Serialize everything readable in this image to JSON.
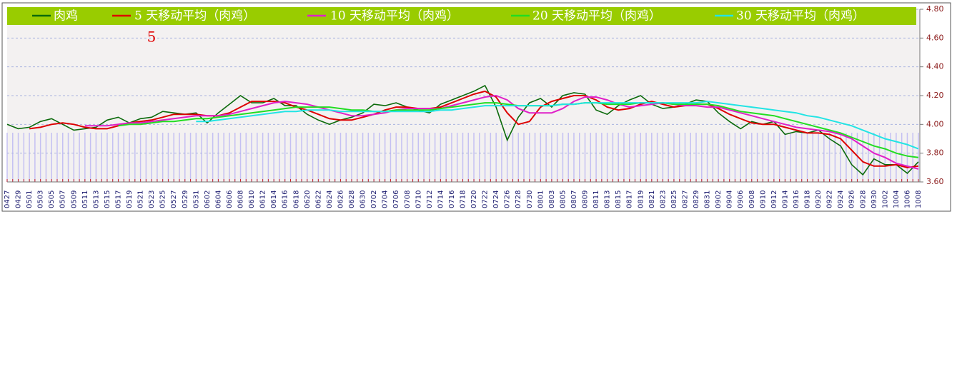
{
  "chart_data": {
    "type": "line",
    "annotation": "5",
    "legend": "top",
    "grid": true,
    "ylim": [
      3.6,
      4.8
    ],
    "yticks": [
      {
        "value": 3.6,
        "label": "3.60"
      },
      {
        "value": 3.8,
        "label": "3.80"
      },
      {
        "value": 4.0,
        "label": "4.00"
      },
      {
        "value": 4.2,
        "label": "4.20"
      },
      {
        "value": 4.4,
        "label": "4.40"
      },
      {
        "value": 4.6,
        "label": "4.60"
      },
      {
        "value": 4.8,
        "label": "4.80"
      }
    ],
    "categories": [
      "0427",
      "0429",
      "0501",
      "0503",
      "0505",
      "0507",
      "0509",
      "0511",
      "0513",
      "0515",
      "0517",
      "0519",
      "0521",
      "0523",
      "0525",
      "0527",
      "0529",
      "0531",
      "0602",
      "0604",
      "0606",
      "0608",
      "0610",
      "0612",
      "0614",
      "0616",
      "0618",
      "0620",
      "0622",
      "0624",
      "0626",
      "0628",
      "0630",
      "0702",
      "0704",
      "0706",
      "0708",
      "0710",
      "0712",
      "0714",
      "0716",
      "0718",
      "0720",
      "0722",
      "0724",
      "0726",
      "0728",
      "0730",
      "0801",
      "0803",
      "0805",
      "0807",
      "0809",
      "0811",
      "0813",
      "0815",
      "0817",
      "0819",
      "0821",
      "0823",
      "0825",
      "0827",
      "0829",
      "0831",
      "0902",
      "0904",
      "0906",
      "0908",
      "0910",
      "0912",
      "0914",
      "0916",
      "0918",
      "0920",
      "0922",
      "0924",
      "0926",
      "0928",
      "0930",
      "1002",
      "1004",
      "1006",
      "1008"
    ],
    "series": [
      {
        "name": "肉鸡",
        "color": "#0b6a0b",
        "values": [
          4.0,
          3.97,
          3.98,
          4.02,
          4.04,
          4.0,
          3.96,
          3.97,
          3.98,
          4.03,
          4.05,
          4.01,
          4.04,
          4.05,
          4.09,
          4.08,
          4.07,
          4.08,
          4.01,
          4.08,
          4.14,
          4.2,
          4.15,
          4.15,
          4.18,
          4.13,
          4.13,
          4.07,
          4.03,
          4.0,
          4.03,
          4.05,
          4.08,
          4.14,
          4.13,
          4.15,
          4.12,
          4.1,
          4.08,
          4.14,
          4.17,
          4.2,
          4.23,
          4.27,
          4.12,
          3.89,
          4.05,
          4.15,
          4.18,
          4.12,
          4.2,
          4.22,
          4.21,
          4.1,
          4.07,
          4.13,
          4.17,
          4.2,
          4.14,
          4.11,
          4.12,
          4.14,
          4.17,
          4.16,
          4.08,
          4.02,
          3.97,
          4.02,
          4.0,
          4.02,
          3.93,
          3.95,
          3.94,
          3.96,
          3.9,
          3.85,
          3.72,
          3.65,
          3.76,
          3.72,
          3.72,
          3.66,
          3.74
        ]
      },
      {
        "name": "5 天移动平均（肉鸡）",
        "color": "#dd0000",
        "values": [
          null,
          null,
          3.97,
          3.98,
          4.0,
          4.01,
          4.0,
          3.98,
          3.97,
          3.97,
          3.99,
          4.01,
          4.02,
          4.03,
          4.05,
          4.07,
          4.07,
          4.07,
          4.06,
          4.06,
          4.08,
          4.12,
          4.16,
          4.16,
          4.16,
          4.15,
          4.12,
          4.1,
          4.07,
          4.04,
          4.03,
          4.03,
          4.05,
          4.07,
          4.1,
          4.12,
          4.12,
          4.11,
          4.11,
          4.12,
          4.15,
          4.18,
          4.21,
          4.23,
          4.19,
          4.08,
          4.0,
          4.02,
          4.12,
          4.16,
          4.18,
          4.2,
          4.2,
          4.17,
          4.12,
          4.1,
          4.11,
          4.14,
          4.16,
          4.14,
          4.12,
          4.13,
          4.14,
          4.14,
          4.11,
          4.07,
          4.04,
          4.01,
          4.0,
          4.0,
          3.98,
          3.96,
          3.94,
          3.94,
          3.93,
          3.9,
          3.82,
          3.74,
          3.71,
          3.71,
          3.72,
          3.7,
          3.71
        ]
      },
      {
        "name": "10 天移动平均（肉鸡）",
        "color": "#e020c8",
        "values": [
          null,
          null,
          null,
          null,
          null,
          null,
          null,
          3.99,
          3.99,
          3.99,
          4.0,
          4.01,
          4.01,
          4.02,
          4.03,
          4.04,
          4.05,
          4.06,
          4.06,
          4.06,
          4.07,
          4.09,
          4.11,
          4.13,
          4.15,
          4.16,
          4.15,
          4.14,
          4.12,
          4.1,
          4.08,
          4.06,
          4.06,
          4.07,
          4.08,
          4.1,
          4.11,
          4.11,
          4.11,
          4.11,
          4.13,
          4.15,
          4.17,
          4.19,
          4.2,
          4.17,
          4.11,
          4.08,
          4.08,
          4.08,
          4.11,
          4.16,
          4.19,
          4.19,
          4.17,
          4.14,
          4.12,
          4.13,
          4.14,
          4.15,
          4.14,
          4.13,
          4.13,
          4.12,
          4.12,
          4.1,
          4.08,
          4.06,
          4.04,
          4.02,
          4.0,
          3.98,
          3.97,
          3.96,
          3.95,
          3.93,
          3.9,
          3.85,
          3.8,
          3.77,
          3.73,
          3.71,
          3.69
        ]
      },
      {
        "name": "20 天移动平均（肉鸡）",
        "color": "#22dd22",
        "values": [
          null,
          null,
          null,
          null,
          null,
          null,
          null,
          null,
          null,
          null,
          3.99,
          4.0,
          4.0,
          4.01,
          4.02,
          4.02,
          4.03,
          4.04,
          4.04,
          4.05,
          4.06,
          4.07,
          4.08,
          4.09,
          4.1,
          4.11,
          4.12,
          4.12,
          4.12,
          4.12,
          4.11,
          4.1,
          4.1,
          4.09,
          4.09,
          4.1,
          4.1,
          4.1,
          4.1,
          4.11,
          4.12,
          4.13,
          4.14,
          4.15,
          4.15,
          4.14,
          4.13,
          4.13,
          4.13,
          4.13,
          4.14,
          4.14,
          4.15,
          4.15,
          4.14,
          4.14,
          4.14,
          4.15,
          4.15,
          4.15,
          4.14,
          4.14,
          4.14,
          4.14,
          4.13,
          4.11,
          4.09,
          4.08,
          4.07,
          4.06,
          4.04,
          4.02,
          4.0,
          3.98,
          3.96,
          3.94,
          3.91,
          3.88,
          3.85,
          3.83,
          3.8,
          3.78,
          3.77
        ]
      },
      {
        "name": "30 天移动平均（肉鸡）",
        "color": "#22e4e4",
        "values": [
          null,
          null,
          null,
          null,
          null,
          null,
          null,
          null,
          null,
          null,
          null,
          null,
          null,
          null,
          null,
          null,
          null,
          4.02,
          4.02,
          4.03,
          4.04,
          4.05,
          4.06,
          4.07,
          4.08,
          4.09,
          4.09,
          4.1,
          4.1,
          4.1,
          4.09,
          4.09,
          4.09,
          4.09,
          4.09,
          4.09,
          4.09,
          4.09,
          4.09,
          4.1,
          4.1,
          4.11,
          4.12,
          4.13,
          4.13,
          4.13,
          4.13,
          4.13,
          4.13,
          4.13,
          4.14,
          4.14,
          4.15,
          4.15,
          4.15,
          4.15,
          4.15,
          4.15,
          4.15,
          4.15,
          4.15,
          4.15,
          4.15,
          4.16,
          4.15,
          4.14,
          4.13,
          4.12,
          4.11,
          4.1,
          4.09,
          4.08,
          4.06,
          4.05,
          4.03,
          4.01,
          3.99,
          3.96,
          3.93,
          3.9,
          3.88,
          3.86,
          3.83
        ]
      }
    ]
  }
}
